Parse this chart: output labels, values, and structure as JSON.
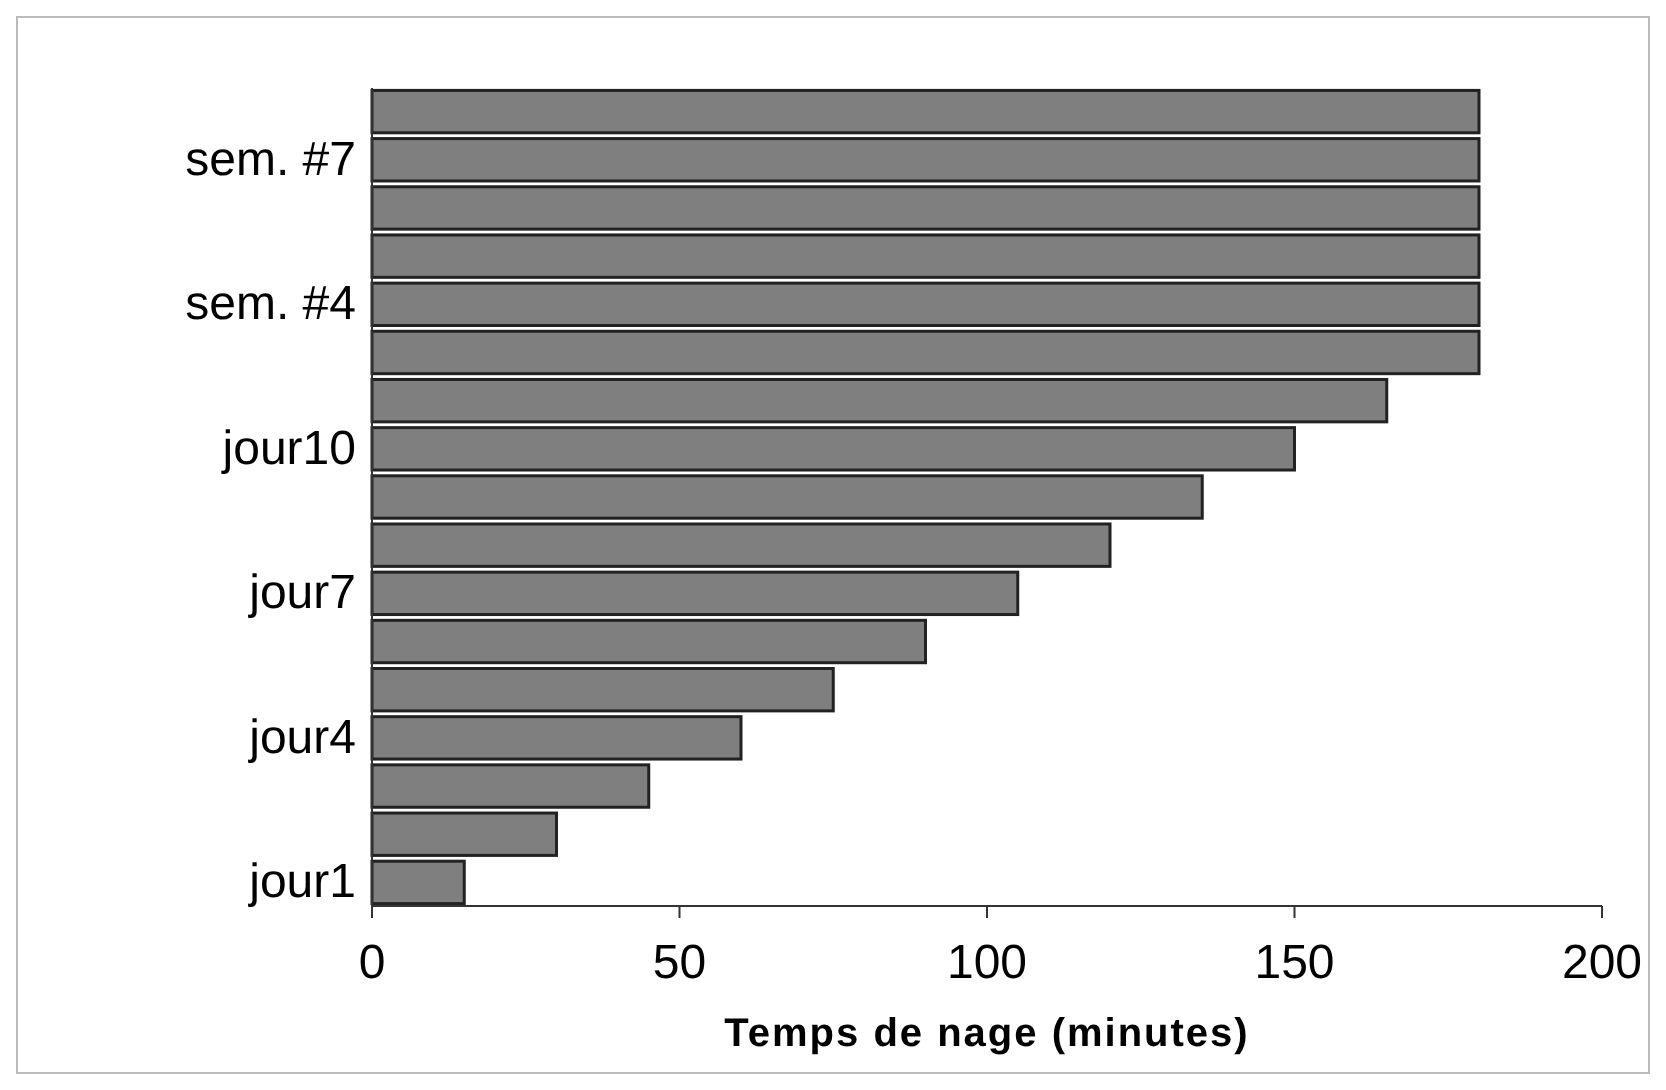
{
  "chart_data": {
    "type": "bar",
    "orientation": "horizontal",
    "xlabel": "Temps de nage (minutes)",
    "categories": [
      null,
      "sem. #7",
      null,
      null,
      "sem. #4",
      null,
      null,
      "jour10",
      null,
      null,
      "jour7",
      null,
      null,
      "jour4",
      null,
      null,
      "jour1"
    ],
    "values": [
      180,
      180,
      180,
      180,
      180,
      180,
      165,
      150,
      135,
      120,
      105,
      90,
      75,
      60,
      45,
      30,
      15
    ],
    "color": "#7f7f7f",
    "xlim": [
      0,
      200
    ],
    "xticks": [
      0,
      50,
      100,
      150,
      200
    ],
    "grid": false
  }
}
